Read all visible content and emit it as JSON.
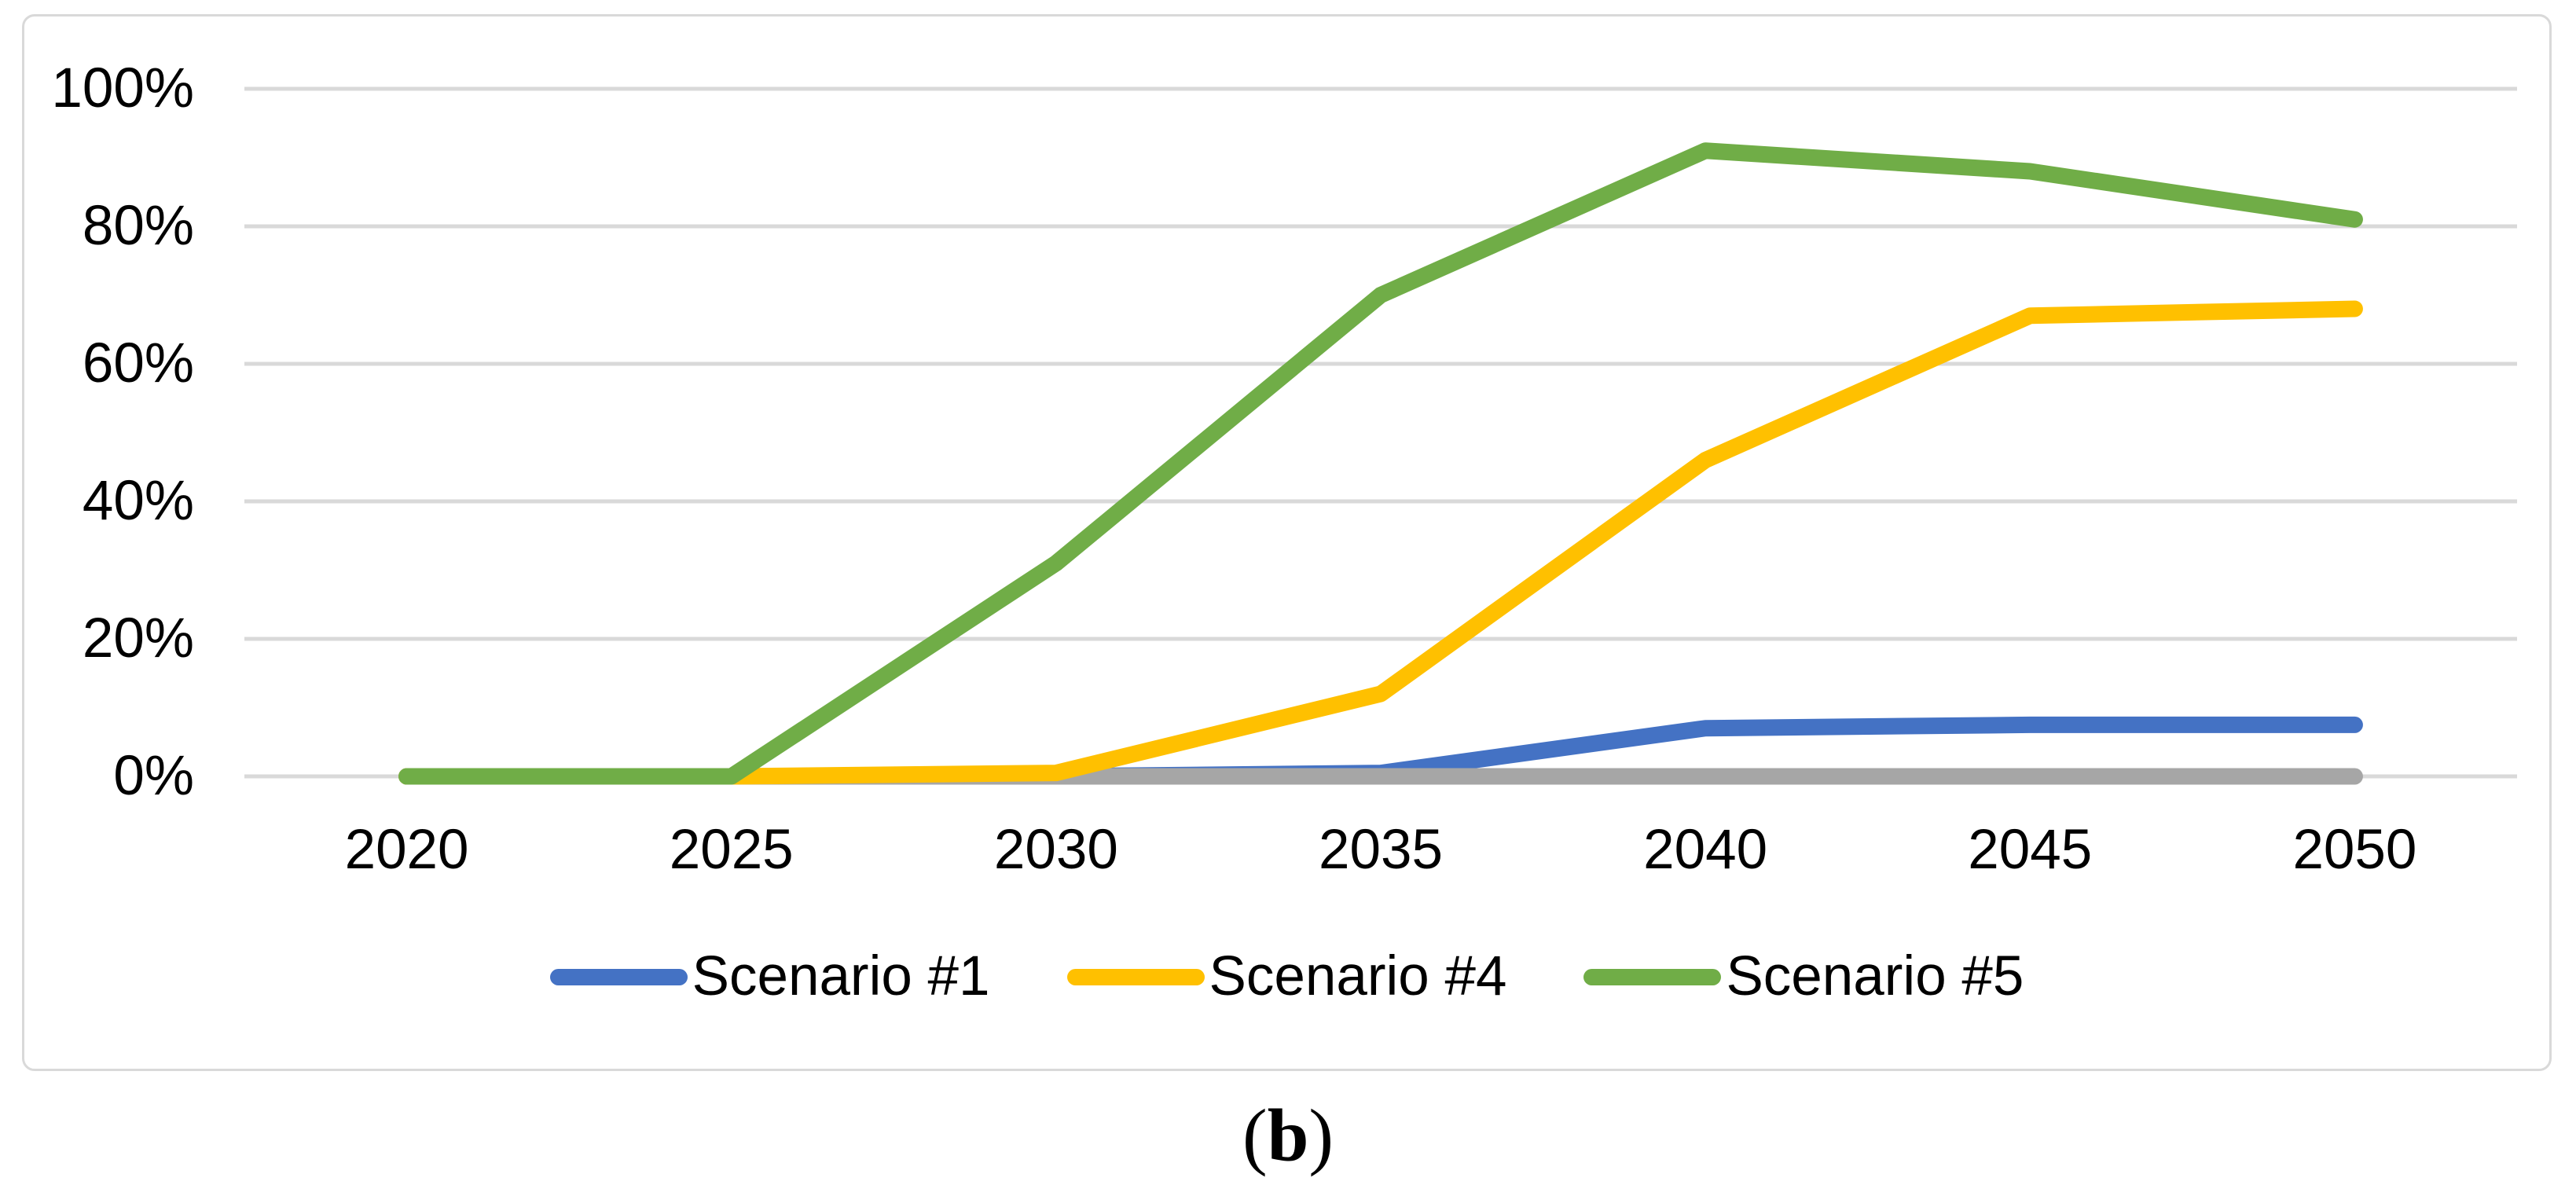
{
  "figure": {
    "caption": {
      "open": "(",
      "letter": "b",
      "close": ")"
    }
  },
  "chart_data": {
    "type": "line",
    "title": "",
    "xlabel": "",
    "ylabel": "",
    "categories": [
      "2020",
      "2025",
      "2030",
      "2035",
      "2040",
      "2045",
      "2050"
    ],
    "ylim": [
      0,
      100
    ],
    "grid": true,
    "legend_position": "bottom",
    "yaxis": {
      "ticks": [
        "100%",
        "80%",
        "60%",
        "40%",
        "20%",
        "0%"
      ]
    },
    "series": [
      {
        "name": "Scenario #1",
        "color": "#4472C4",
        "in_legend": true,
        "z": 0,
        "values": [
          0,
          0,
          0,
          0.5,
          7,
          7.5,
          7.5
        ]
      },
      {
        "name": "",
        "color": "#A6A6A6",
        "in_legend": false,
        "z": 1,
        "values": [
          0,
          0,
          0,
          0,
          0,
          0,
          0
        ]
      },
      {
        "name": "Scenario #4",
        "color": "#FFC000",
        "in_legend": true,
        "z": 2,
        "values": [
          0,
          0,
          0.5,
          12,
          46,
          67,
          68
        ]
      },
      {
        "name": "Scenario #5",
        "color": "#70AD47",
        "in_legend": true,
        "z": 3,
        "values": [
          0,
          0,
          31,
          70,
          91,
          88,
          81
        ]
      }
    ]
  }
}
